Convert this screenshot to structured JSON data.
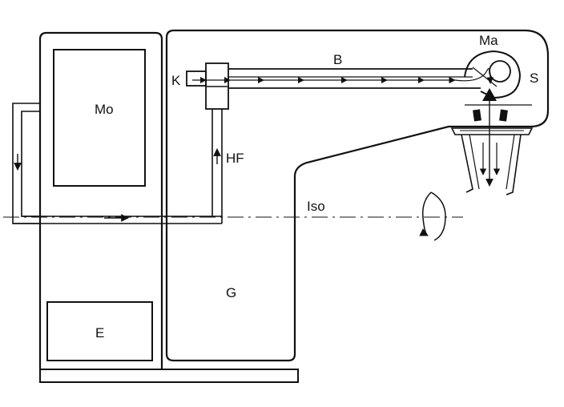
{
  "labels": {
    "monitor": "Mo",
    "klystron": "K",
    "beamline": "B",
    "magnet": "Ma",
    "source": "S",
    "hf": "HF",
    "isocenter": "Iso",
    "gantry": "G",
    "electronics": "E"
  },
  "colors": {
    "ink": "#111111",
    "background": "#ffffff"
  }
}
